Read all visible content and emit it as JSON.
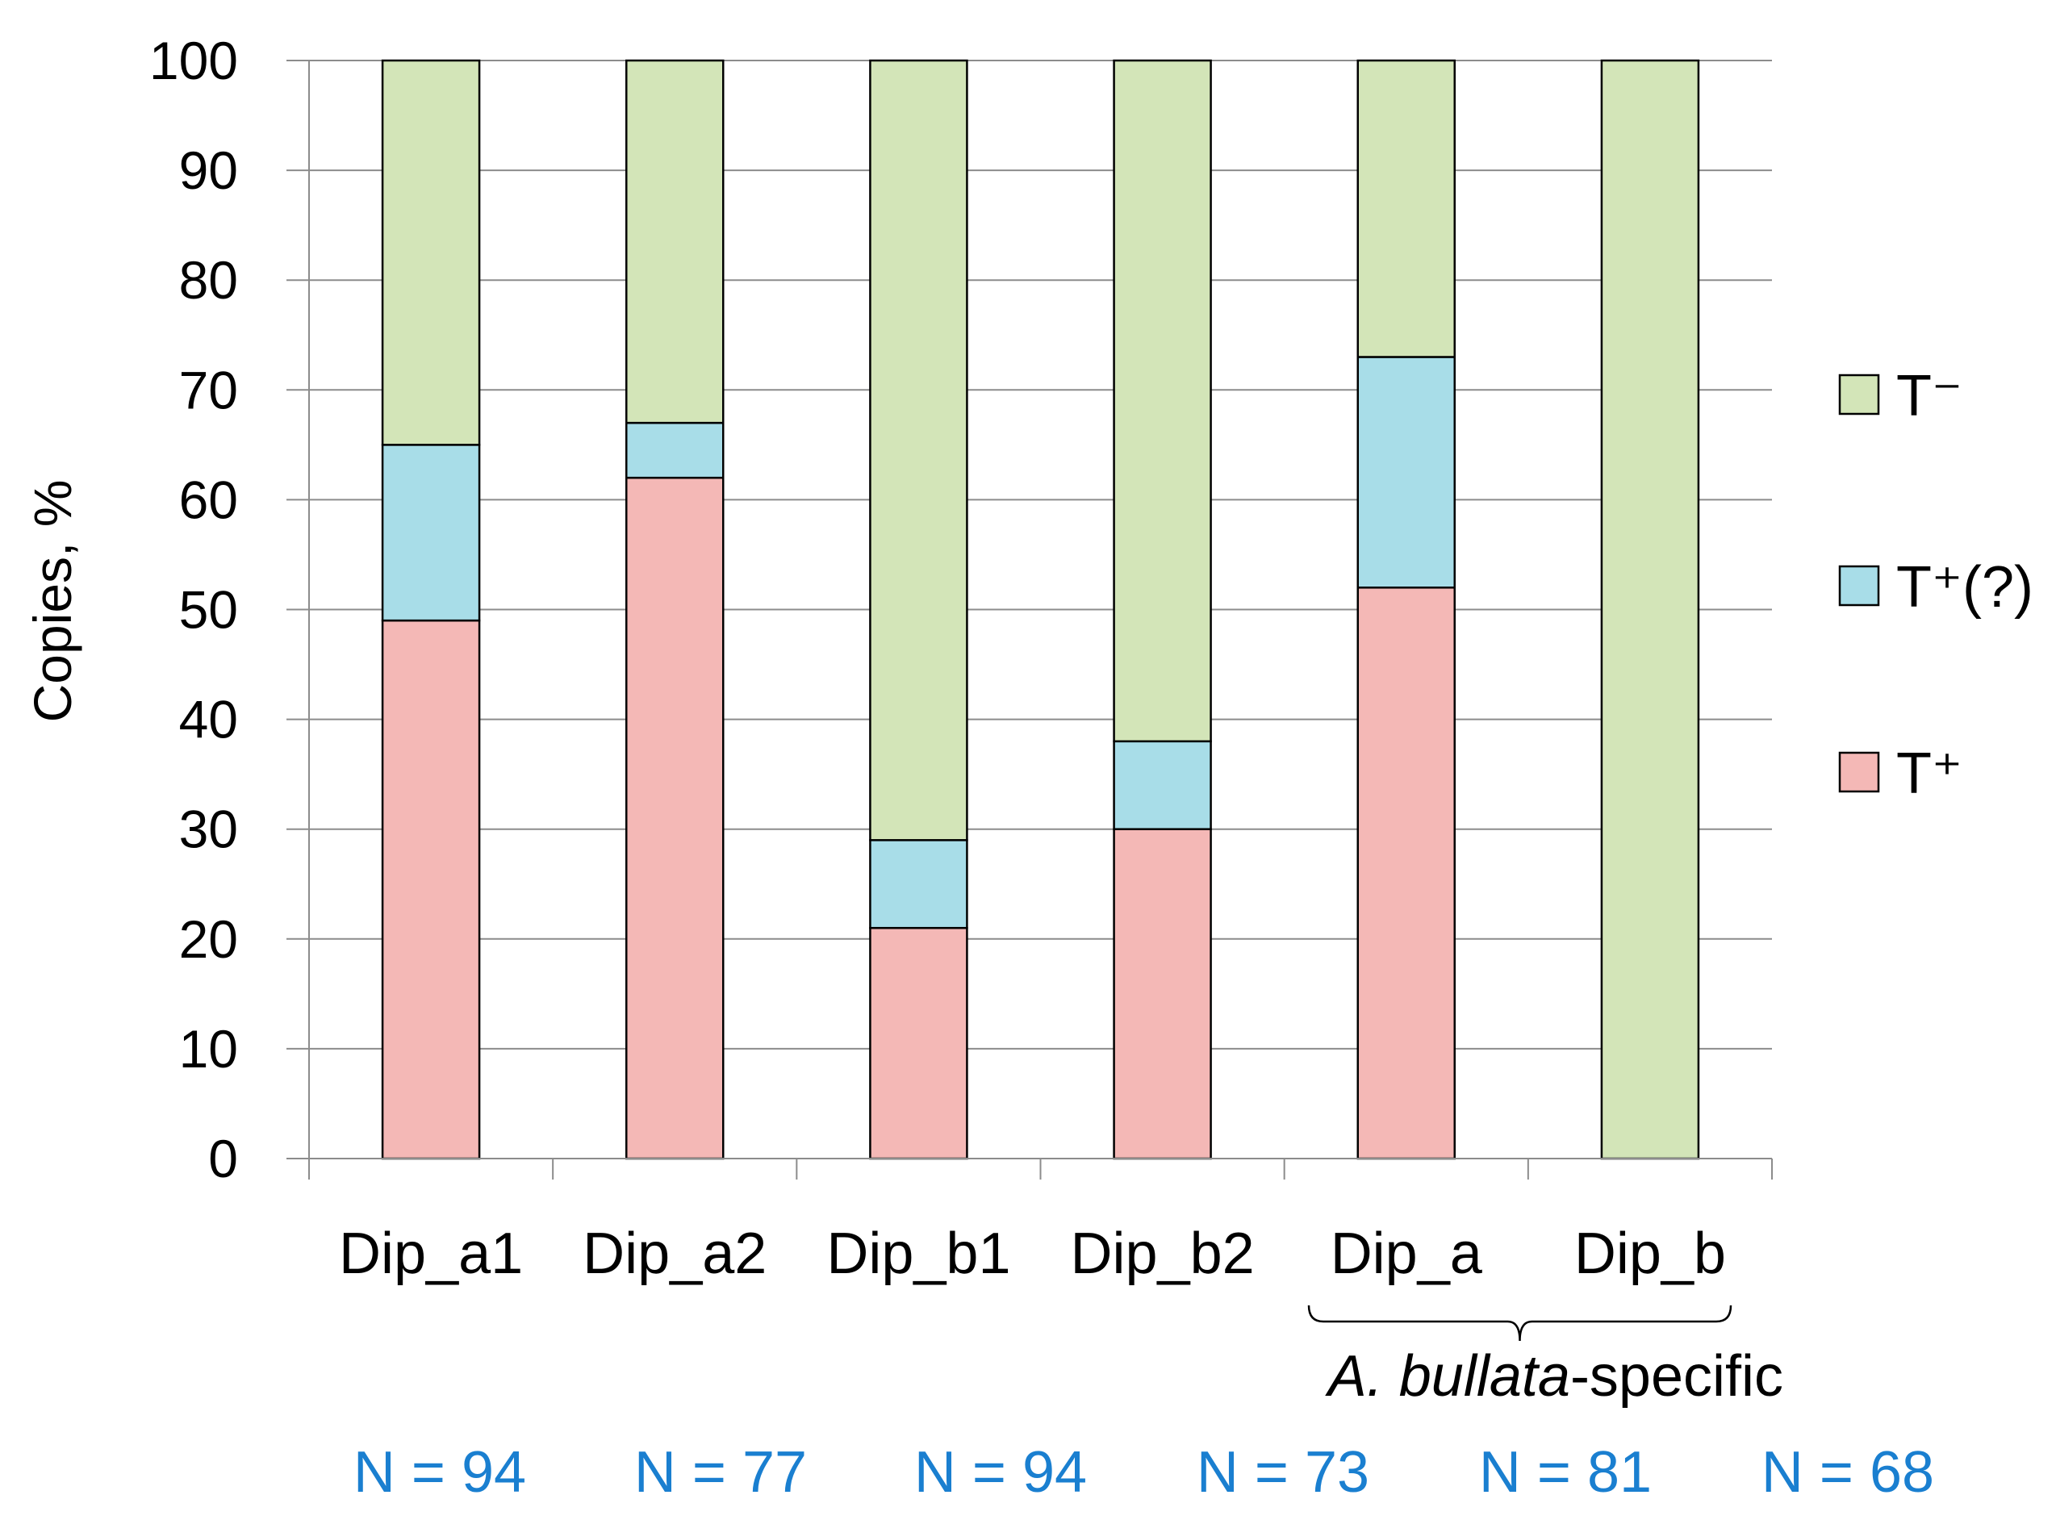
{
  "chart_data": {
    "type": "bar",
    "stacked": true,
    "categories": [
      "Dip_a1",
      "Dip_a2",
      "Dip_b1",
      "Dip_b2",
      "Dip_a",
      "Dip_b"
    ],
    "series": [
      {
        "name": "T⁺",
        "color": "#f4b8b6",
        "values": [
          49,
          62,
          21,
          30,
          52,
          0
        ]
      },
      {
        "name": "T⁺(?)",
        "color": "#a8dde8",
        "values": [
          16,
          5,
          8,
          8,
          21,
          0
        ]
      },
      {
        "name": "T⁻",
        "color": "#d3e5b8",
        "values": [
          35,
          33,
          71,
          62,
          27,
          100
        ]
      }
    ],
    "ylabel": "Copies, %",
    "ylim": [
      0,
      100
    ],
    "yticks": [
      "0",
      "10",
      "20",
      "30",
      "40",
      "50",
      "60",
      "70",
      "80",
      "90",
      "100"
    ],
    "grid": true,
    "legend_position": "right",
    "legend_order": [
      "T⁻",
      "T⁺(?)",
      "T⁺"
    ],
    "group_brace": {
      "categories": [
        "Dip_a",
        "Dip_b"
      ],
      "label_italic": "A. bullata",
      "label_rest": "-specific"
    },
    "n_labels": [
      "N = 94",
      "N = 77",
      "N = 94",
      "N = 73",
      "N = 81",
      "N = 68"
    ],
    "n_label_color": "#1a7fd0"
  }
}
